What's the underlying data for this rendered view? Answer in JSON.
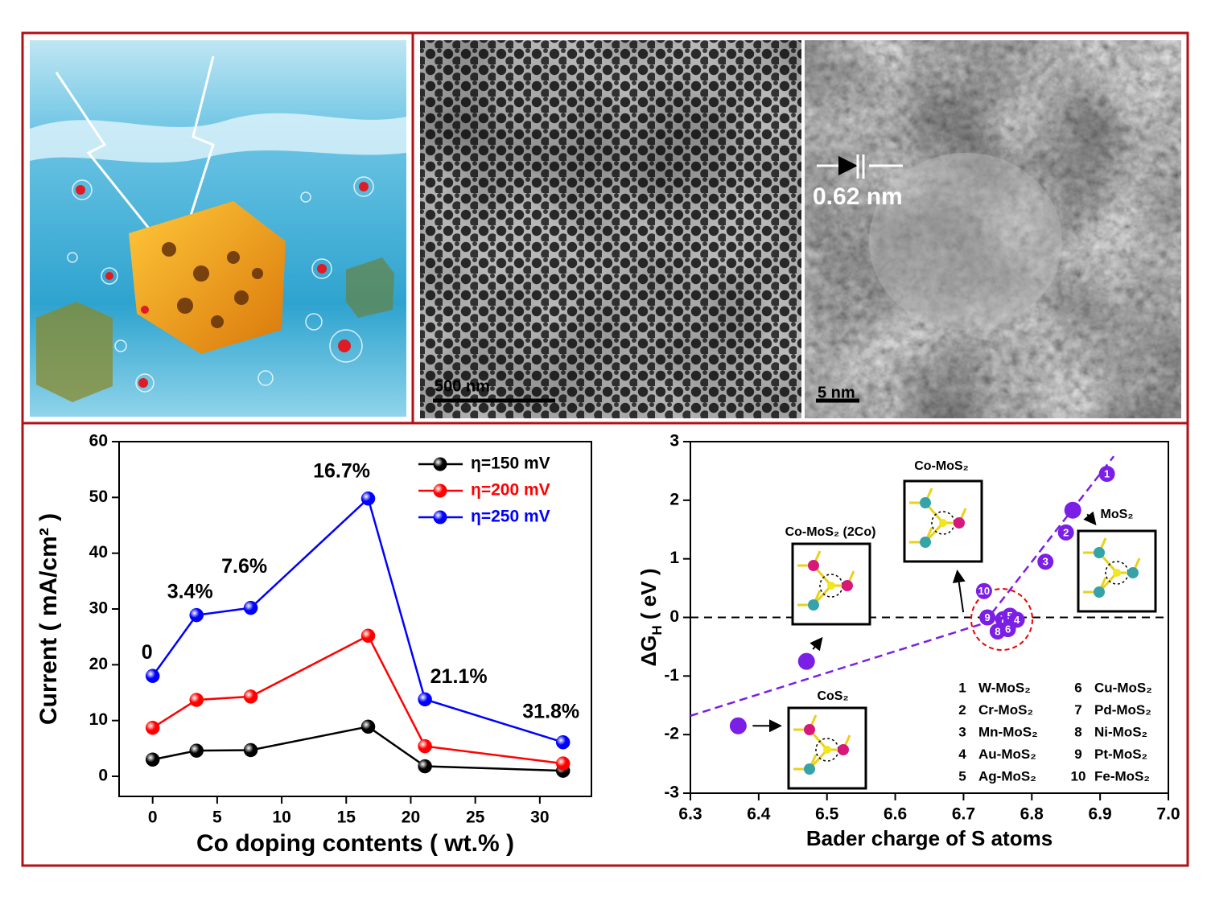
{
  "panels": {
    "sem_scale": "500 nm",
    "tem_scale": "5 nm",
    "tem_spacing": "0.62 nm"
  },
  "chart_data": [
    {
      "type": "line",
      "xlabel": "Co doping contents ( wt.% )",
      "ylabel": "Current ( mA/cm² )",
      "x": [
        0,
        3.4,
        7.6,
        16.7,
        21.1,
        31.8
      ],
      "point_labels": [
        "0",
        "3.4%",
        "7.6%",
        "16.7%",
        "21.1%",
        "31.8%"
      ],
      "series": [
        {
          "name": "η=150 mV",
          "color": "#000000",
          "values": [
            3.0,
            4.6,
            4.7,
            8.9,
            1.8,
            1.0
          ]
        },
        {
          "name": "η=200 mV",
          "color": "#ff0000",
          "values": [
            8.7,
            13.7,
            14.3,
            25.2,
            5.4,
            2.3
          ]
        },
        {
          "name": "η=250 mV",
          "color": "#0000ff",
          "values": [
            18.0,
            28.9,
            30.2,
            49.8,
            13.8,
            6.1
          ]
        }
      ],
      "xlim": [
        -2.6,
        34
      ],
      "xticks": [
        0,
        5,
        10,
        15,
        20,
        25,
        30
      ],
      "ylim": [
        -3.6,
        60
      ],
      "yticks": [
        0,
        10,
        20,
        30,
        40,
        50,
        60
      ],
      "legend": "upper right",
      "grid": false
    },
    {
      "type": "scatter",
      "xlabel": "Bader charge of S atoms",
      "ylabel": "ΔG",
      "ylabel_sub": "H",
      "ylabel_unit": " ( eV )",
      "color": "#7b1fe6",
      "xlim": [
        6.3,
        7.0
      ],
      "xticks": [
        6.3,
        6.4,
        6.5,
        6.6,
        6.7,
        6.8,
        6.9,
        {
          "value": 7.0,
          "label": "7.0"
        }
      ],
      "ylim": [
        -3,
        3
      ],
      "yticks": [
        -3,
        -2,
        -1,
        0,
        1,
        2,
        3
      ],
      "reference_y": 0,
      "trend_lines": [
        {
          "x": [
            6.3,
            6.73
          ],
          "y": [
            -1.68,
            -0.1
          ]
        },
        {
          "x": [
            6.73,
            6.92
          ],
          "y": [
            -0.1,
            2.75
          ]
        }
      ],
      "structures": [
        {
          "name": "CoS₂",
          "x": 6.37,
          "y": -1.85
        },
        {
          "name": "Co-MoS₂ (2Co)",
          "x": 6.47,
          "y": -0.75
        },
        {
          "name": "Co-MoS₂",
          "x": 6.735,
          "y": -0.05
        },
        {
          "name": "MoS₂",
          "x": 6.86,
          "y": 1.83
        }
      ],
      "points": [
        {
          "label": "1",
          "x": 6.91,
          "y": 2.45
        },
        {
          "label": "2",
          "x": 6.85,
          "y": 1.45
        },
        {
          "label": "3",
          "x": 6.82,
          "y": 0.95
        },
        {
          "label": "10",
          "x": 6.73,
          "y": 0.45
        },
        {
          "label": "9",
          "x": 6.735,
          "y": 0.0
        },
        {
          "label": "7",
          "x": 6.758,
          "y": -0.03
        },
        {
          "label": "5",
          "x": 6.768,
          "y": 0.03
        },
        {
          "label": "4",
          "x": 6.778,
          "y": -0.04
        },
        {
          "label": "6",
          "x": 6.765,
          "y": -0.2
        },
        {
          "label": "8",
          "x": 6.75,
          "y": -0.24
        }
      ],
      "legend_entries": [
        {
          "number": "1",
          "name": "W-MoS₂"
        },
        {
          "number": "2",
          "name": "Cr-MoS₂"
        },
        {
          "number": "3",
          "name": "Mn-MoS₂"
        },
        {
          "number": "4",
          "name": "Au-MoS₂"
        },
        {
          "number": "5",
          "name": "Ag-MoS₂"
        },
        {
          "number": "6",
          "name": "Cu-MoS₂"
        },
        {
          "number": "7",
          "name": "Pd-MoS₂"
        },
        {
          "number": "8",
          "name": "Ni-MoS₂"
        },
        {
          "number": "9",
          "name": "Pt-MoS₂"
        },
        {
          "number": "10",
          "name": "Fe-MoS₂"
        }
      ]
    }
  ]
}
